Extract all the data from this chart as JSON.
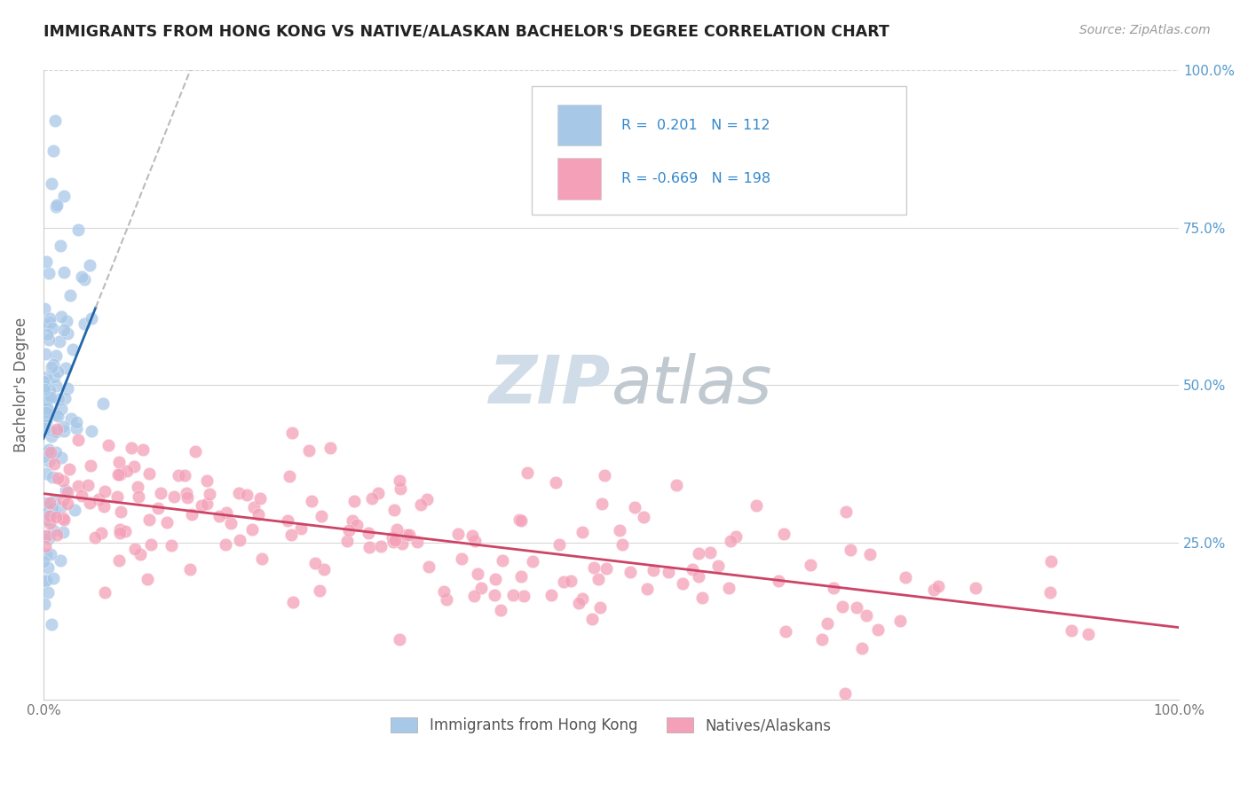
{
  "title": "IMMIGRANTS FROM HONG KONG VS NATIVE/ALASKAN BACHELOR'S DEGREE CORRELATION CHART",
  "source_text": "Source: ZipAtlas.com",
  "ylabel": "Bachelor's Degree",
  "legend_label1": "Immigrants from Hong Kong",
  "legend_label2": "Natives/Alaskans",
  "r1": 0.201,
  "n1": 112,
  "r2": -0.669,
  "n2": 198,
  "xlim": [
    0.0,
    1.0
  ],
  "ylim": [
    0.0,
    1.0
  ],
  "color_blue": "#a8c8e8",
  "color_pink": "#f4a0b8",
  "color_blue_line": "#2266aa",
  "color_pink_line": "#cc4466",
  "color_dashed_line": "#bbbbbb",
  "watermark_zip_color": "#d0dce8",
  "watermark_atlas_color": "#c0c8d0",
  "background_color": "#ffffff",
  "grid_color": "#d8d8d8",
  "seed": 42
}
